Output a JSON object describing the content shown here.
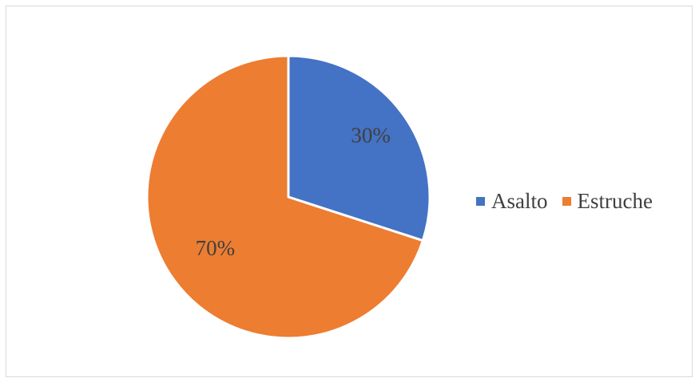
{
  "chart_data": {
    "type": "pie",
    "title": "",
    "categories": [
      "Asalto",
      "Estruche"
    ],
    "values": [
      30,
      70
    ],
    "labels": [
      "30%",
      "70%"
    ],
    "colors": [
      "#4472c4",
      "#ed7d31"
    ],
    "legend_position": "right",
    "start_angle_deg": 0,
    "direction": "clockwise"
  }
}
